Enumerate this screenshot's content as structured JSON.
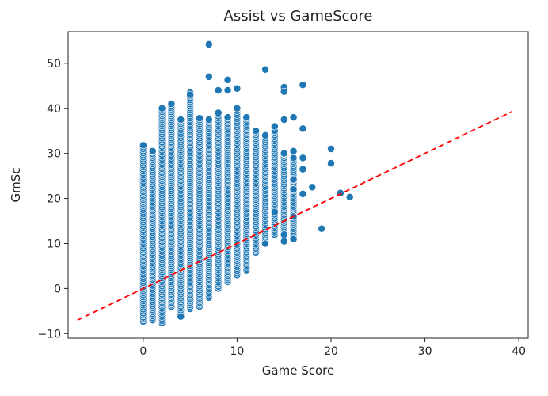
{
  "chart_data": {
    "type": "scatter",
    "title": "Assist vs GameScore",
    "xlabel": "Game Score",
    "ylabel": "GmSc",
    "xlim": [
      -8,
      41
    ],
    "ylim": [
      -11,
      57
    ],
    "xticks": [
      0,
      10,
      20,
      30,
      40
    ],
    "yticks": [
      -10,
      0,
      10,
      20,
      30,
      40,
      50
    ],
    "grid": false,
    "point_color": "#1f77b4",
    "reference_line": {
      "style": "dashed",
      "color": "#ff0000",
      "x": [
        -7,
        39.3
      ],
      "y": [
        -7,
        39.3
      ]
    },
    "column_ranges": [
      {
        "x": 0,
        "y_min": -7.3,
        "y_max": 31.8
      },
      {
        "x": 1,
        "y_min": -7.0,
        "y_max": 30.5
      },
      {
        "x": 2,
        "y_min": -7.6,
        "y_max": 40.0
      },
      {
        "x": 3,
        "y_min": -4.0,
        "y_max": 41.0
      },
      {
        "x": 4,
        "y_min": -6.2,
        "y_max": 37.5
      },
      {
        "x": 5,
        "y_min": -4.5,
        "y_max": 43.5
      },
      {
        "x": 6,
        "y_min": -4.0,
        "y_max": 37.8
      },
      {
        "x": 7,
        "y_min": -2.0,
        "y_max": 37.5
      },
      {
        "x": 8,
        "y_min": 0.0,
        "y_max": 39.0
      },
      {
        "x": 9,
        "y_min": 1.5,
        "y_max": 38.0
      },
      {
        "x": 10,
        "y_min": 3.0,
        "y_max": 40.0
      },
      {
        "x": 11,
        "y_min": 4.0,
        "y_max": 38.0
      },
      {
        "x": 12,
        "y_min": 8.0,
        "y_max": 35.0
      },
      {
        "x": 13,
        "y_min": 10.0,
        "y_max": 34.0
      },
      {
        "x": 14,
        "y_min": 12.0,
        "y_max": 35.0
      },
      {
        "x": 15,
        "y_min": 11.0,
        "y_max": 30.0
      },
      {
        "x": 16,
        "y_min": 11.0,
        "y_max": 29.0
      }
    ],
    "points": [
      {
        "x": 7,
        "y": 54.2
      },
      {
        "x": 7,
        "y": 47.0
      },
      {
        "x": 9,
        "y": 46.3
      },
      {
        "x": 13,
        "y": 48.6
      },
      {
        "x": 8,
        "y": 44.0
      },
      {
        "x": 9,
        "y": 44.0
      },
      {
        "x": 10,
        "y": 44.4
      },
      {
        "x": 15,
        "y": 44.7
      },
      {
        "x": 15,
        "y": 43.7
      },
      {
        "x": 17,
        "y": 45.2
      },
      {
        "x": 5,
        "y": 43.0
      },
      {
        "x": 14,
        "y": 36.0
      },
      {
        "x": 15,
        "y": 37.5
      },
      {
        "x": 16,
        "y": 38.0
      },
      {
        "x": 17,
        "y": 35.5
      },
      {
        "x": 16,
        "y": 30.5
      },
      {
        "x": 17,
        "y": 29.0
      },
      {
        "x": 17,
        "y": 26.5
      },
      {
        "x": 16,
        "y": 24.2
      },
      {
        "x": 16,
        "y": 22.0
      },
      {
        "x": 17,
        "y": 21.0
      },
      {
        "x": 18,
        "y": 22.5
      },
      {
        "x": 20,
        "y": 31.0
      },
      {
        "x": 20,
        "y": 27.8
      },
      {
        "x": 21,
        "y": 21.2
      },
      {
        "x": 22,
        "y": 20.3
      },
      {
        "x": 19,
        "y": 13.3
      },
      {
        "x": 16,
        "y": 16.0
      },
      {
        "x": 16,
        "y": 11.0
      },
      {
        "x": 15,
        "y": 12.0
      },
      {
        "x": 15,
        "y": 10.5
      },
      {
        "x": 14,
        "y": 17.0
      },
      {
        "x": 13,
        "y": 10.0
      },
      {
        "x": 4,
        "y": -6.2
      }
    ]
  }
}
